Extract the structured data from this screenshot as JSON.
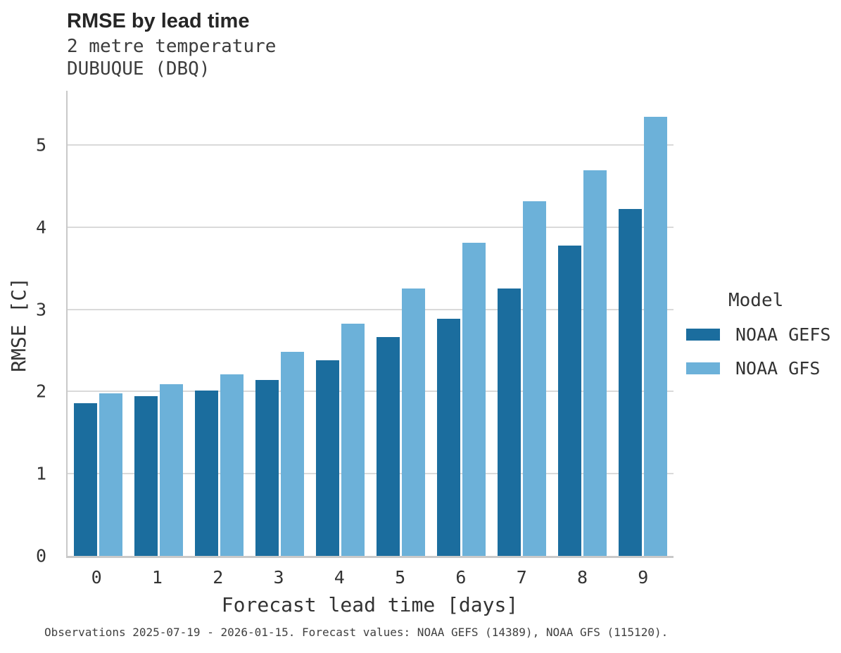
{
  "header": {
    "title": "RMSE by lead time",
    "subtitle_line1": "2 metre temperature",
    "subtitle_line2": "DUBUQUE (DBQ)"
  },
  "legend": {
    "title": "Model",
    "items": [
      {
        "label": "NOAA GEFS",
        "color": "#1b6d9e"
      },
      {
        "label": "NOAA GFS",
        "color": "#6cb1d9"
      }
    ]
  },
  "footer": {
    "caption": "Observations 2025-07-19 - 2026-01-15. Forecast values: NOAA GEFS (14389), NOAA GFS (115120)."
  },
  "chart_data": {
    "type": "bar",
    "title": "RMSE by lead time",
    "subtitle": [
      "2 metre temperature",
      "DUBUQUE (DBQ)"
    ],
    "categories": [
      "0",
      "1",
      "2",
      "3",
      "4",
      "5",
      "6",
      "7",
      "8",
      "9"
    ],
    "series": [
      {
        "name": "NOAA GEFS",
        "color": "#1b6d9e",
        "values": [
          1.86,
          1.94,
          2.01,
          2.14,
          2.38,
          2.66,
          2.89,
          3.25,
          3.78,
          4.22
        ]
      },
      {
        "name": "NOAA GFS",
        "color": "#6cb1d9",
        "values": [
          1.98,
          2.09,
          2.21,
          2.48,
          2.83,
          3.25,
          3.81,
          4.32,
          4.69,
          5.34
        ]
      }
    ],
    "xlabel": "Forecast lead time [days]",
    "ylabel": "RMSE [C]",
    "ylim": [
      0,
      5.66
    ],
    "yticks": [
      0,
      1,
      2,
      3,
      4,
      5
    ],
    "grid": "horizontal",
    "legend_title": "Model",
    "legend_position": "right"
  }
}
